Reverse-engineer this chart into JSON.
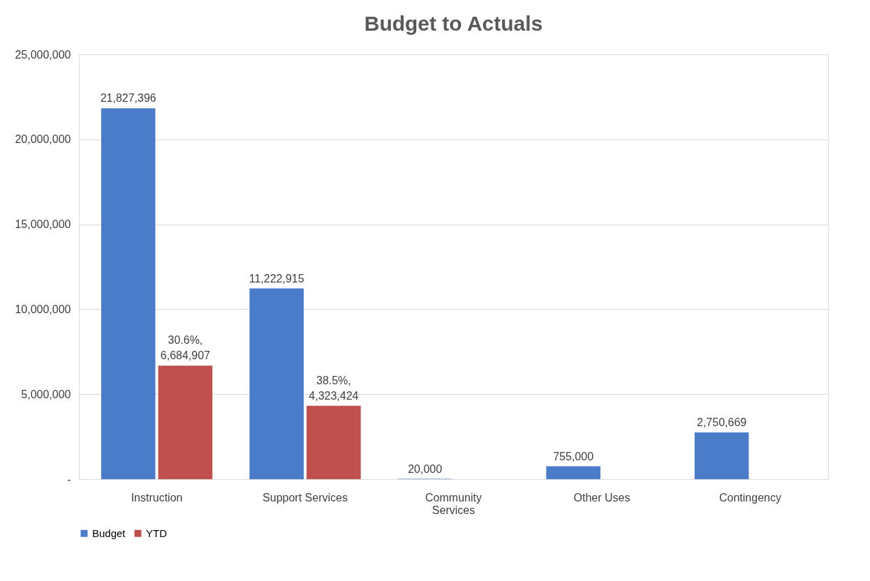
{
  "chart_data": {
    "type": "bar",
    "title": "Budget to Actuals",
    "categories": [
      "Instruction",
      "Support Services",
      "Community Services",
      "Other Uses",
      "Contingency"
    ],
    "series": [
      {
        "name": "Budget",
        "color": "#4a7cc9",
        "values": [
          21827396,
          11222915,
          20000,
          755000,
          2750669
        ],
        "value_labels": [
          "21,827,396",
          "11,222,915",
          "20,000",
          "755,000",
          "2,750,669"
        ]
      },
      {
        "name": "YTD",
        "color": "#c0504d",
        "values": [
          6684907,
          4323424,
          0,
          0,
          0
        ],
        "value_labels": [
          "30.6%, 6,684,907",
          "38.5%, 4,323,424",
          null,
          null,
          null
        ]
      }
    ],
    "ylim": [
      0,
      25000000
    ],
    "yticks": [
      {
        "value": 0,
        "label": "-"
      },
      {
        "value": 5000000,
        "label": "5,000,000"
      },
      {
        "value": 10000000,
        "label": "10,000,000"
      },
      {
        "value": 15000000,
        "label": "15,000,000"
      },
      {
        "value": 20000000,
        "label": "20,000,000"
      },
      {
        "value": 25000000,
        "label": "25,000,000"
      }
    ],
    "grid": "y",
    "legend": "bottom"
  }
}
